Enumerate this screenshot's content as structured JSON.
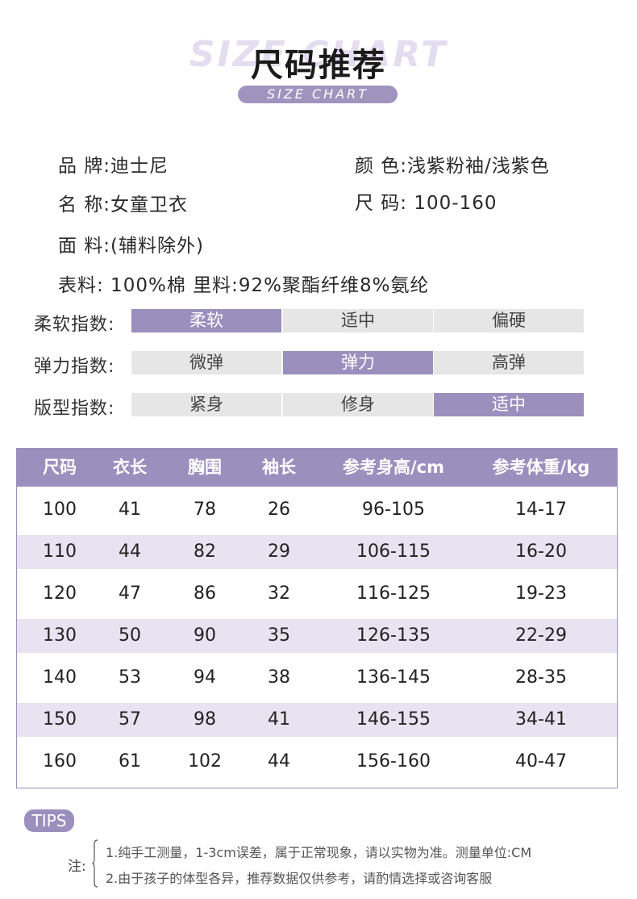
{
  "header": {
    "bg_text": "SIZE CHART",
    "title": "尺码推荐",
    "subtitle": "SIZE CHART"
  },
  "info": {
    "brand": "品  牌:迪士尼",
    "color": "颜  色:浅紫粉袖/浅紫色",
    "name": "名  称:女童卫衣",
    "size": "尺  码:  100-160",
    "fabric": "面  料:(辅料除外)",
    "material": "表料:  100%棉  里料:92%聚酯纤维8%氨纶"
  },
  "indices": [
    {
      "label": "柔软指数:",
      "options": [
        "柔软",
        "适中",
        "偏硬"
      ],
      "selected": 0
    },
    {
      "label": "弹力指数:",
      "options": [
        "微弹",
        "弹力",
        "高弹"
      ],
      "selected": 1
    },
    {
      "label": "版型指数:",
      "options": [
        "紧身",
        "修身",
        "适中"
      ],
      "selected": 2
    }
  ],
  "size_table": {
    "headers": [
      "尺码",
      "衣长",
      "胸围",
      "袖长",
      "参考身高/cm",
      "参考体重/kg"
    ],
    "rows": [
      [
        "100",
        "41",
        "78",
        "26",
        "96-105",
        "14-17"
      ],
      [
        "110",
        "44",
        "82",
        "29",
        "106-115",
        "16-20"
      ],
      [
        "120",
        "47",
        "86",
        "32",
        "116-125",
        "19-23"
      ],
      [
        "130",
        "50",
        "90",
        "35",
        "126-135",
        "22-29"
      ],
      [
        "140",
        "53",
        "94",
        "38",
        "136-145",
        "28-35"
      ],
      [
        "150",
        "57",
        "98",
        "41",
        "146-155",
        "34-41"
      ],
      [
        "160",
        "61",
        "102",
        "44",
        "156-160",
        "40-47"
      ]
    ]
  },
  "tips": {
    "badge": "TIPS",
    "note_label": "注:",
    "notes": [
      "1.纯手工测量，1-3cm误差，属于正常现象，请以实物为准。测量单位:CM",
      "2.由于孩子的体型各异，推荐数据仅供参考，请酌情选择或咨询客服"
    ]
  },
  "colors": {
    "accent": "#9b8fbe",
    "row_alt": "#e8e2f1",
    "inactive_cell": "#e6e6e6"
  }
}
